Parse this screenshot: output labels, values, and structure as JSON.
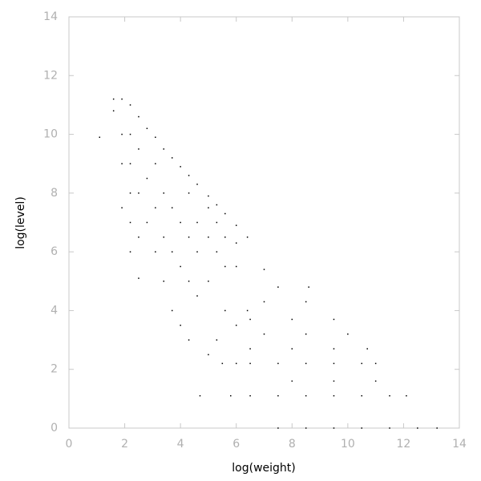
{
  "chart_data": {
    "type": "scatter",
    "x_label": "log(weight)",
    "y_label": "log(level)",
    "color": "#000000",
    "xlim": [
      0,
      14
    ],
    "ylim": [
      0,
      14
    ],
    "xticks": [
      0,
      2,
      4,
      6,
      8,
      10,
      12,
      14
    ],
    "yticks": [
      0,
      2,
      4,
      6,
      8,
      10,
      12,
      14
    ],
    "x": [
      1.1,
      1.6,
      1.6,
      1.9,
      1.9,
      1.9,
      1.9,
      2.2,
      2.2,
      2.2,
      2.2,
      2.2,
      2.2,
      2.5,
      2.5,
      2.5,
      2.5,
      2.5,
      2.8,
      2.8,
      2.8,
      3.1,
      3.1,
      3.1,
      3.1,
      3.4,
      3.4,
      3.4,
      3.4,
      3.7,
      3.7,
      3.7,
      3.7,
      4.0,
      4.0,
      4.0,
      4.0,
      4.3,
      4.3,
      4.3,
      4.3,
      4.3,
      4.6,
      4.6,
      4.6,
      4.6,
      5.0,
      5.0,
      5.0,
      5.0,
      5.0,
      5.3,
      5.3,
      5.3,
      5.3,
      5.6,
      5.6,
      5.6,
      5.6,
      6.0,
      6.0,
      6.0,
      6.0,
      6.0,
      6.4,
      6.4,
      4.7,
      5.8,
      6.5,
      7.5,
      8.5,
      9.5,
      10.5,
      11.5,
      12.1,
      5.5,
      6.5,
      7.5,
      8.5,
      9.5,
      10.5,
      11.0,
      7.5,
      8.5,
      9.5,
      10.5,
      11.5,
      12.5,
      13.2,
      8.0,
      9.5,
      11.0,
      6.5,
      8.0,
      9.5,
      10.7,
      7.0,
      8.5,
      10.0,
      6.5,
      8.0,
      9.5,
      7.0,
      8.5,
      7.5,
      8.6,
      7.0
    ],
    "y": [
      9.9,
      10.8,
      11.2,
      7.5,
      9.0,
      10.0,
      11.2,
      6.0,
      7.0,
      8.0,
      9.0,
      10.0,
      11.0,
      5.1,
      6.5,
      8.0,
      9.5,
      10.6,
      7.0,
      8.5,
      10.2,
      6.0,
      7.5,
      9.0,
      9.9,
      5.0,
      6.5,
      8.0,
      9.5,
      4.0,
      6.0,
      7.5,
      9.2,
      3.5,
      5.5,
      7.0,
      8.9,
      3.0,
      5.0,
      6.5,
      8.0,
      8.6,
      4.5,
      6.0,
      7.0,
      8.3,
      2.5,
      5.0,
      6.5,
      7.5,
      7.9,
      3.0,
      6.0,
      7.0,
      7.6,
      4.0,
      5.5,
      6.5,
      7.3,
      2.2,
      3.5,
      5.5,
      6.3,
      6.9,
      4.0,
      6.5,
      1.1,
      1.1,
      1.1,
      1.1,
      1.1,
      1.1,
      1.1,
      1.1,
      1.1,
      2.2,
      2.2,
      2.2,
      2.2,
      2.2,
      2.2,
      2.2,
      0.0,
      0.0,
      0.0,
      0.0,
      0.0,
      0.0,
      0.0,
      1.6,
      1.6,
      1.6,
      2.7,
      2.7,
      2.7,
      2.7,
      3.2,
      3.2,
      3.2,
      3.7,
      3.7,
      3.7,
      4.3,
      4.3,
      4.8,
      4.8,
      5.4
    ]
  }
}
